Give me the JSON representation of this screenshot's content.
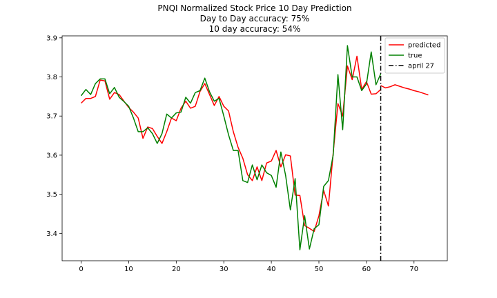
{
  "chart_data": {
    "type": "line",
    "title": "PNQI Normalized Stock Price 10 Day Prediction",
    "subtitle_lines": [
      "Day to Day accuracy: 75%",
      "10 day accuracy: 54%"
    ],
    "xlabel": "",
    "ylabel": "",
    "xlim": [
      -4,
      77
    ],
    "ylim": [
      3.33,
      3.905
    ],
    "x_ticks": [
      0,
      10,
      20,
      30,
      40,
      50,
      60,
      70
    ],
    "y_ticks": [
      3.4,
      3.5,
      3.6,
      3.7,
      3.8,
      3.9
    ],
    "y_tick_labels": [
      "3.4",
      "3.5",
      "3.6",
      "3.7",
      "3.8",
      "3.9"
    ],
    "grid": false,
    "legend_position": "top-right",
    "colors": {
      "predicted": "#ff0000",
      "true": "#008000",
      "marker": "#000000"
    },
    "series": [
      {
        "name": "predicted",
        "x": [
          0,
          1,
          2,
          3,
          4,
          5,
          6,
          7,
          8,
          9,
          10,
          11,
          12,
          13,
          14,
          15,
          16,
          17,
          18,
          19,
          20,
          21,
          22,
          23,
          24,
          25,
          26,
          27,
          28,
          29,
          30,
          31,
          32,
          33,
          34,
          35,
          36,
          37,
          38,
          39,
          40,
          41,
          42,
          43,
          44,
          45,
          46,
          47,
          48,
          49,
          50,
          51,
          52,
          53,
          54,
          55,
          56,
          57,
          58,
          59,
          60,
          61,
          62,
          63
        ],
        "values": [
          3.733,
          3.745,
          3.745,
          3.75,
          3.792,
          3.79,
          3.743,
          3.76,
          3.755,
          3.738,
          3.722,
          3.71,
          3.695,
          3.643,
          3.672,
          3.668,
          3.648,
          3.63,
          3.66,
          3.695,
          3.688,
          3.72,
          3.738,
          3.72,
          3.725,
          3.763,
          3.783,
          3.755,
          3.727,
          3.75,
          3.725,
          3.713,
          3.66,
          3.62,
          3.592,
          3.55,
          3.535,
          3.57,
          3.535,
          3.58,
          3.585,
          3.612,
          3.57,
          3.601,
          3.598,
          3.498,
          3.497,
          3.42,
          3.413,
          3.405,
          3.445,
          3.51,
          3.47,
          3.605,
          3.732,
          3.7,
          3.828,
          3.793,
          3.853,
          3.768,
          3.788,
          3.756,
          3.757,
          3.768
        ]
      },
      {
        "name": "true",
        "x": [
          0,
          1,
          2,
          3,
          4,
          5,
          6,
          7,
          8,
          9,
          10,
          11,
          12,
          13,
          14,
          15,
          16,
          17,
          18,
          19,
          20,
          21,
          22,
          23,
          24,
          25,
          26,
          27,
          28,
          29,
          30,
          31,
          32,
          33,
          34,
          35,
          36,
          37,
          38,
          39,
          40,
          41,
          42,
          43,
          44,
          45,
          46,
          47,
          48,
          49,
          50,
          51,
          52,
          53,
          54,
          55,
          56,
          57,
          58,
          59,
          60,
          61,
          62,
          63
        ],
        "values": [
          3.752,
          3.768,
          3.755,
          3.783,
          3.795,
          3.795,
          3.757,
          3.773,
          3.748,
          3.737,
          3.725,
          3.695,
          3.66,
          3.66,
          3.67,
          3.655,
          3.63,
          3.655,
          3.705,
          3.695,
          3.708,
          3.71,
          3.748,
          3.733,
          3.76,
          3.765,
          3.797,
          3.762,
          3.738,
          3.745,
          3.7,
          3.652,
          3.612,
          3.612,
          3.535,
          3.53,
          3.575,
          3.537,
          3.575,
          3.555,
          3.548,
          3.518,
          3.608,
          3.548,
          3.46,
          3.54,
          3.358,
          3.445,
          3.36,
          3.412,
          3.422,
          3.52,
          3.535,
          3.6,
          3.806,
          3.665,
          3.88,
          3.8,
          3.8,
          3.765,
          3.782,
          3.864,
          3.78,
          3.808
        ]
      },
      {
        "name": "",
        "x": [
          63,
          64,
          65,
          66,
          67,
          68,
          69,
          70,
          71,
          72,
          73
        ],
        "values": [
          3.778,
          3.772,
          3.775,
          3.78,
          3.776,
          3.772,
          3.769,
          3.765,
          3.762,
          3.758,
          3.754
        ],
        "color_key": "predicted"
      }
    ],
    "vertical_line": {
      "x": 63,
      "label": "april 27",
      "style": "dashdot"
    },
    "legend": [
      {
        "label": "predicted",
        "color_key": "predicted",
        "style": "solid"
      },
      {
        "label": "true",
        "color_key": "true",
        "style": "solid"
      },
      {
        "label": "april 27",
        "color_key": "marker",
        "style": "dashdot"
      }
    ]
  }
}
